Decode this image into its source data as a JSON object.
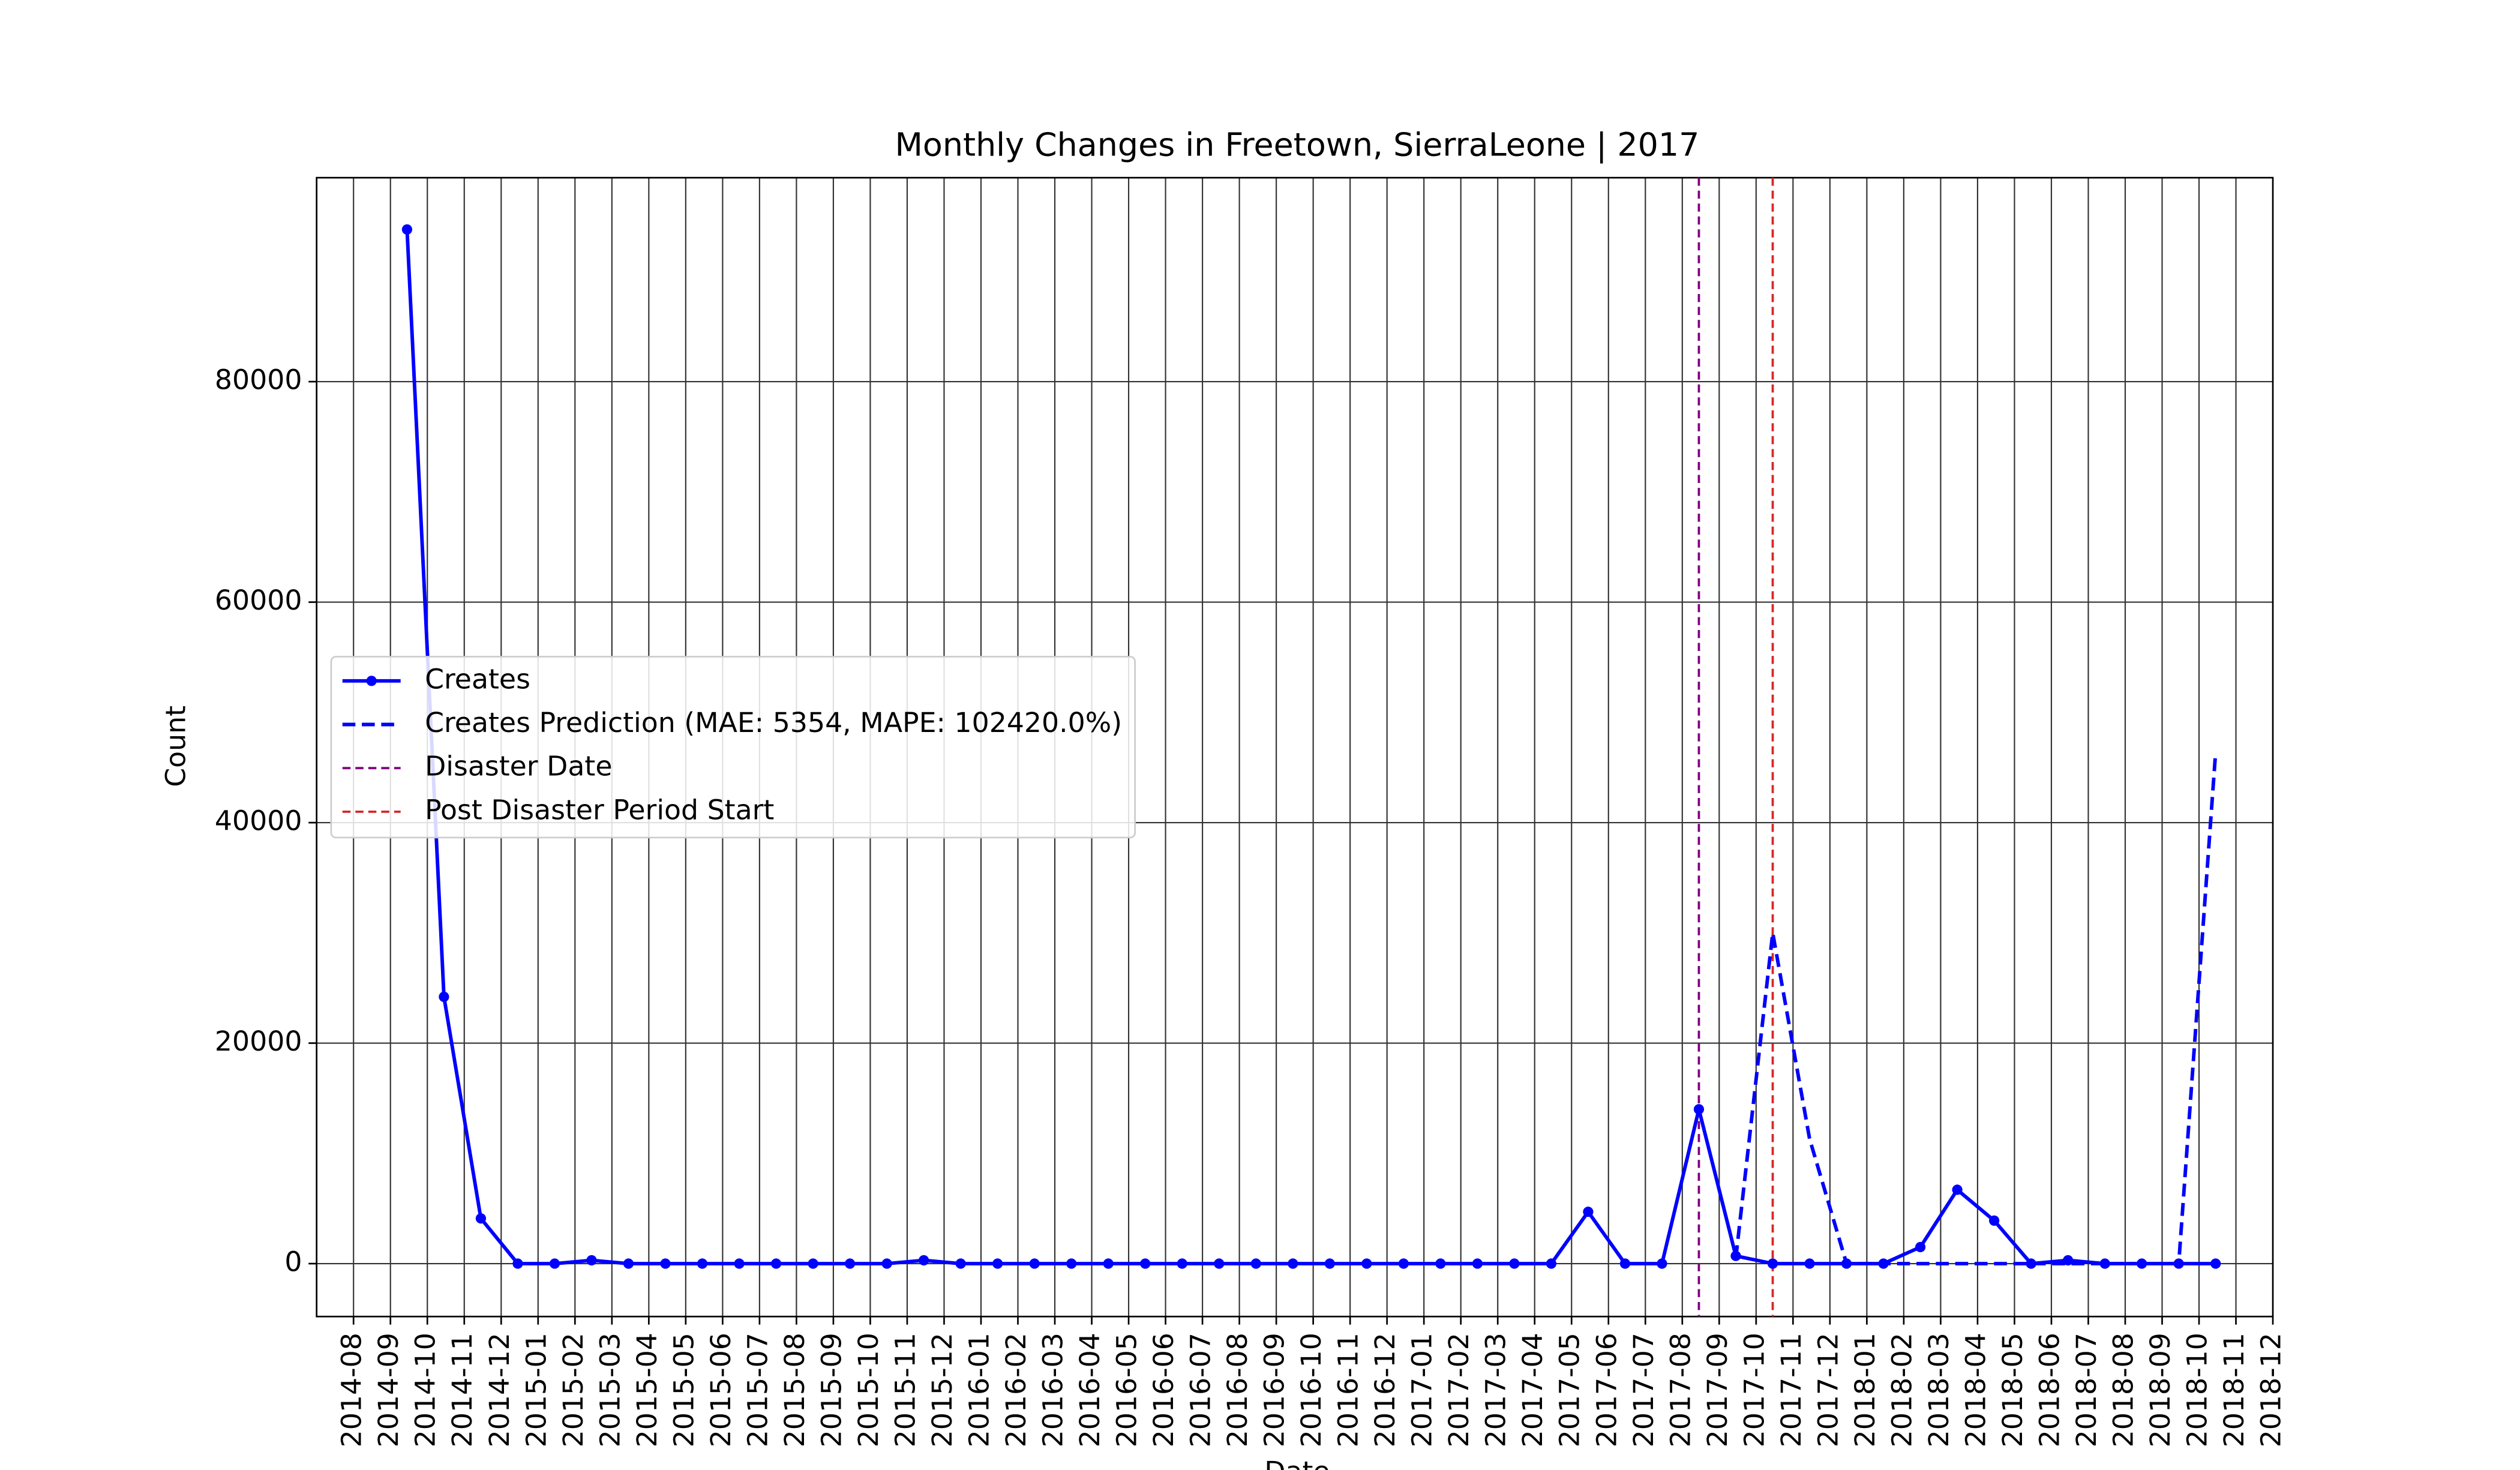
{
  "chart_data": {
    "type": "line",
    "title": "Monthly Changes in Freetown, SierraLeone | 2017",
    "x_label": "Date",
    "y_label": "Count",
    "x": [
      "2014-09",
      "2014-10",
      "2014-11",
      "2014-12",
      "2015-01",
      "2015-02",
      "2015-03",
      "2015-04",
      "2015-05",
      "2015-06",
      "2015-07",
      "2015-08",
      "2015-09",
      "2015-10",
      "2015-11",
      "2015-12",
      "2016-01",
      "2016-02",
      "2016-03",
      "2016-04",
      "2016-05",
      "2016-06",
      "2016-07",
      "2016-08",
      "2016-09",
      "2016-10",
      "2016-11",
      "2016-12",
      "2017-01",
      "2017-02",
      "2017-03",
      "2017-04",
      "2017-05",
      "2017-06",
      "2017-07",
      "2017-08",
      "2017-09",
      "2017-10",
      "2017-11",
      "2017-12",
      "2018-01",
      "2018-02",
      "2018-03",
      "2018-04",
      "2018-05",
      "2018-06",
      "2018-07",
      "2018-08",
      "2018-09",
      "2018-10"
    ],
    "series": [
      {
        "name": "Creates",
        "color": "#0000ff",
        "style": "solid",
        "marker": true,
        "values": [
          93800,
          24200,
          4100,
          0,
          0,
          300,
          0,
          0,
          0,
          0,
          0,
          0,
          0,
          0,
          300,
          0,
          0,
          0,
          0,
          0,
          0,
          0,
          0,
          0,
          0,
          0,
          0,
          0,
          0,
          0,
          0,
          0,
          4700,
          0,
          0,
          14000,
          700,
          0,
          0,
          0,
          0,
          1500,
          6700,
          3900,
          0,
          300,
          0,
          0,
          0,
          0
        ]
      },
      {
        "name": "Creates Prediction (MAE: 5354, MAPE: 102420.0%)",
        "color": "#0000ff",
        "style": "dashed",
        "marker": false,
        "values": [
          null,
          null,
          null,
          null,
          null,
          null,
          null,
          null,
          null,
          null,
          null,
          null,
          null,
          null,
          null,
          null,
          null,
          null,
          null,
          null,
          null,
          null,
          null,
          null,
          null,
          null,
          null,
          null,
          null,
          null,
          null,
          null,
          null,
          null,
          null,
          null,
          500,
          30000,
          11300,
          0,
          0,
          0,
          0,
          0,
          0,
          0,
          0,
          0,
          0,
          46400
        ]
      }
    ],
    "vlines": [
      {
        "name": "Disaster Date",
        "x": "2017-08",
        "color": "#800080"
      },
      {
        "name": "Post Disaster Period Start",
        "x": "2017-10",
        "color": "#d62728"
      }
    ],
    "xlim": [
      "2014-07",
      "2018-12"
    ],
    "xticks": [
      "2014-08",
      "2014-09",
      "2014-10",
      "2014-11",
      "2014-12",
      "2015-01",
      "2015-02",
      "2015-03",
      "2015-04",
      "2015-05",
      "2015-06",
      "2015-07",
      "2015-08",
      "2015-09",
      "2015-10",
      "2015-11",
      "2015-12",
      "2016-01",
      "2016-02",
      "2016-03",
      "2016-04",
      "2016-05",
      "2016-06",
      "2016-07",
      "2016-08",
      "2016-09",
      "2016-10",
      "2016-11",
      "2016-12",
      "2017-01",
      "2017-02",
      "2017-03",
      "2017-04",
      "2017-05",
      "2017-06",
      "2017-07",
      "2017-08",
      "2017-09",
      "2017-10",
      "2017-11",
      "2017-12",
      "2018-01",
      "2018-02",
      "2018-03",
      "2018-04",
      "2018-05",
      "2018-06",
      "2018-07",
      "2018-08",
      "2018-09",
      "2018-10",
      "2018-11",
      "2018-12"
    ],
    "ylim": [
      -4800,
      98500
    ],
    "yticks": [
      0,
      20000,
      40000,
      60000,
      80000
    ],
    "grid": true,
    "legend": "center left"
  }
}
